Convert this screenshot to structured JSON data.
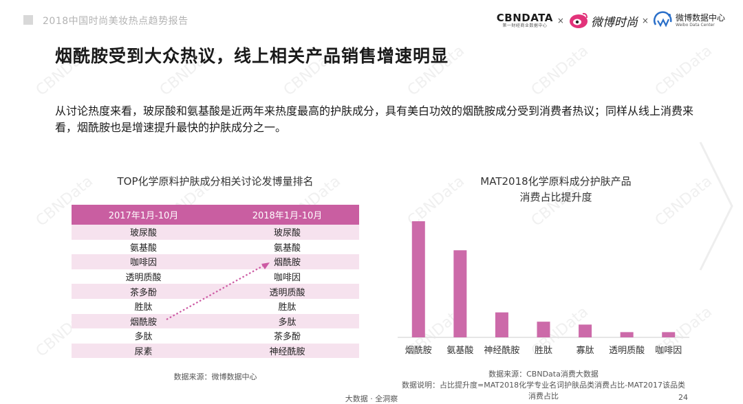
{
  "header": {
    "report_title": "2018中国时尚美妆热点趋势报告",
    "logos": {
      "cbn_main": "CBNDATA",
      "cbn_sub": "第一财经商业数据中心",
      "times": "×",
      "weibo_fashion": "微博时尚",
      "weibo_data_main": "微博数据中心",
      "weibo_data_sub": "Weibo Data Center"
    }
  },
  "headline": "烟酰胺受到大众热议，线上相关产品销售增速明显",
  "description": "从讨论热度来看，玻尿酸和氨基酸是近两年来热度最高的护肤成分，具有美白功效的烟酰胺成分受到消费者热议；同样从线上消费来看，烟酰胺也是增速提升最快的护肤成分之一。",
  "ranking_table": {
    "title": "TOP化学原料护肤成分相关讨论发博量排名",
    "headers": [
      "2017年1月-10月",
      "2018年1月-10月"
    ],
    "rows": [
      [
        "玻尿酸",
        "玻尿酸"
      ],
      [
        "氨基酸",
        "氨基酸"
      ],
      [
        "咖啡因",
        "烟酰胺"
      ],
      [
        "透明质酸",
        "咖啡因"
      ],
      [
        "茶多酚",
        "透明质酸"
      ],
      [
        "胜肽",
        "胜肽"
      ],
      [
        "烟酰胺",
        "多肽"
      ],
      [
        "多肽",
        "茶多酚"
      ],
      [
        "尿素",
        "神经酰胺"
      ]
    ],
    "source": "数据来源：微博数据中心"
  },
  "chart_data": {
    "type": "bar",
    "title": "MAT2018化学原料成分护肤产品",
    "subtitle": "消费占比提升度",
    "categories": [
      "烟酰胺",
      "氨基酸",
      "神经酰胺",
      "胜肽",
      "寡肽",
      "透明质酸",
      "咖啡因"
    ],
    "values": [
      100,
      75,
      21.5,
      13.5,
      11,
      4.5,
      4.5
    ],
    "ylim": [
      0,
      100
    ],
    "xlabel": "",
    "ylabel": "",
    "grid": false,
    "bar_color": "#cc6aa9",
    "source_lines": [
      "数据来源：CBNData消费大数据",
      "数据说明：占比提升度=MAT2018化学专业名词护肤品类消费占比-MAT2017该品类",
      "消费占比"
    ]
  },
  "footer": {
    "center_text": "大数据 · 全洞察",
    "page_number": "24"
  },
  "watermark_text": "CBNData",
  "colors": {
    "accent": "#c95ea1",
    "row_tint": "#f6e2ee",
    "arrow": "#cc5aa3"
  },
  "icons": [
    "cbndata-logo",
    "weibo-fashion-logo",
    "weibo-data-logo",
    "next-slide-chevron-icon"
  ]
}
